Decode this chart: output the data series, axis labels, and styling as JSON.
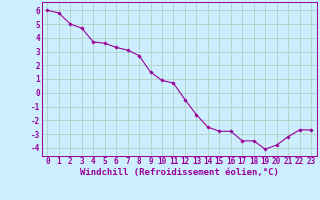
{
  "x": [
    0,
    1,
    2,
    3,
    4,
    5,
    6,
    7,
    8,
    9,
    10,
    11,
    12,
    13,
    14,
    15,
    16,
    17,
    18,
    19,
    20,
    21,
    22,
    23
  ],
  "y": [
    6.0,
    5.8,
    5.0,
    4.7,
    3.7,
    3.6,
    3.3,
    3.1,
    2.7,
    1.5,
    0.9,
    0.7,
    -0.5,
    -1.6,
    -2.5,
    -2.8,
    -2.8,
    -3.5,
    -3.5,
    -4.1,
    -3.8,
    -3.2,
    -2.7,
    -2.7
  ],
  "line_color": "#990099",
  "marker": "D",
  "marker_size": 1.8,
  "linewidth": 0.8,
  "xlabel": "Windchill (Refroidissement éolien,°C)",
  "xlabel_fontsize": 6.5,
  "xlabel_color": "#990099",
  "background_color": "#cceeff",
  "grid_color": "#aaccbb",
  "tick_color": "#990099",
  "tick_fontsize": 5.5,
  "ylim": [
    -4.6,
    6.6
  ],
  "xlim": [
    -0.5,
    23.5
  ],
  "yticks": [
    -4,
    -3,
    -2,
    -1,
    0,
    1,
    2,
    3,
    4,
    5,
    6
  ],
  "xticks": [
    0,
    1,
    2,
    3,
    4,
    5,
    6,
    7,
    8,
    9,
    10,
    11,
    12,
    13,
    14,
    15,
    16,
    17,
    18,
    19,
    20,
    21,
    22,
    23
  ]
}
